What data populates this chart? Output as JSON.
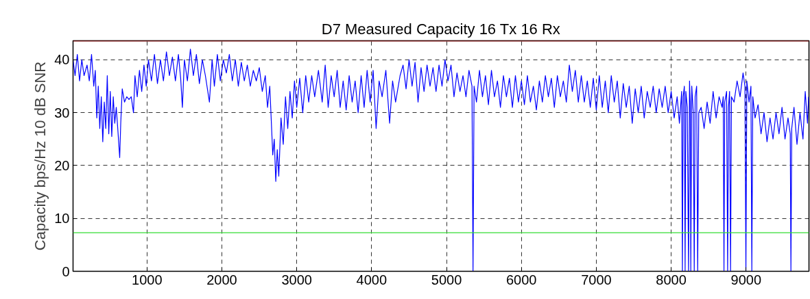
{
  "chart_data": {
    "type": "line",
    "title": "D7 Measured Capacity 16 Tx 16 Rx",
    "ylabel": "Capacity bps/Hz 10 dB SNR",
    "xlim": [
      13,
      9840
    ],
    "ylim": [
      0,
      43.6
    ],
    "xticks": [
      1000,
      2000,
      3000,
      4000,
      5000,
      6000,
      7000,
      8000,
      9000
    ],
    "yticks": [
      0,
      10,
      20,
      30,
      40
    ],
    "grid": true,
    "line_style": "solid",
    "ref_lines": [
      {
        "axis": "y",
        "value": 43.6,
        "color": "#a01c1c"
      },
      {
        "axis": "y",
        "value": 7.3,
        "color": "#33dd33"
      }
    ],
    "series": [
      {
        "color": "#0000ff",
        "x": [
          13,
          40,
          70,
          100,
          130,
          160,
          200,
          230,
          260,
          290,
          310,
          330,
          350,
          370,
          390,
          410,
          430,
          450,
          470,
          490,
          510,
          530,
          550,
          570,
          590,
          610,
          636,
          650,
          670,
          700,
          730,
          760,
          790,
          820,
          840,
          870,
          900,
          930,
          960,
          990,
          1020,
          1060,
          1100,
          1140,
          1180,
          1220,
          1260,
          1300,
          1340,
          1380,
          1420,
          1450,
          1473,
          1500,
          1540,
          1580,
          1620,
          1660,
          1700,
          1740,
          1780,
          1834,
          1870,
          1900,
          1940,
          1980,
          2020,
          2060,
          2100,
          2140,
          2180,
          2220,
          2260,
          2300,
          2340,
          2380,
          2420,
          2460,
          2500,
          2540,
          2580,
          2610,
          2640,
          2680,
          2700,
          2720,
          2740,
          2760,
          2790,
          2820,
          2850,
          2880,
          2910,
          2940,
          2970,
          3000,
          3040,
          3080,
          3120,
          3160,
          3200,
          3240,
          3290,
          3340,
          3380,
          3420,
          3460,
          3500,
          3540,
          3580,
          3620,
          3660,
          3700,
          3740,
          3780,
          3820,
          3860,
          3900,
          3940,
          3980,
          4020,
          4060,
          4100,
          4140,
          4190,
          4240,
          4280,
          4320,
          4380,
          4420,
          4460,
          4500,
          4540,
          4580,
          4620,
          4660,
          4700,
          4740,
          4780,
          4820,
          4860,
          4900,
          4940,
          4980,
          5020,
          5060,
          5100,
          5140,
          5180,
          5220,
          5260,
          5300,
          5340,
          5354,
          5368,
          5400,
          5440,
          5480,
          5520,
          5560,
          5600,
          5640,
          5680,
          5720,
          5760,
          5800,
          5840,
          5880,
          5920,
          5960,
          6000,
          6040,
          6080,
          6120,
          6160,
          6200,
          6240,
          6280,
          6320,
          6360,
          6400,
          6440,
          6480,
          6520,
          6560,
          6600,
          6640,
          6680,
          6720,
          6760,
          6800,
          6840,
          6880,
          6920,
          6960,
          7000,
          7040,
          7080,
          7120,
          7160,
          7200,
          7240,
          7280,
          7320,
          7360,
          7400,
          7440,
          7480,
          7520,
          7560,
          7600,
          7640,
          7680,
          7720,
          7760,
          7800,
          7840,
          7880,
          7920,
          7960,
          8000,
          8040,
          8080,
          8110,
          8140,
          8150,
          8160,
          8176,
          8186,
          8196,
          8215,
          8232,
          8245,
          8255,
          8262,
          8275,
          8295,
          8308,
          8320,
          8340,
          8354,
          8368,
          8400,
          8440,
          8480,
          8520,
          8560,
          8600,
          8640,
          8680,
          8695,
          8705,
          8715,
          8740,
          8754,
          8765,
          8780,
          8793,
          8805,
          8840,
          8880,
          8920,
          8960,
          8985,
          8998,
          9010,
          9040,
          9065,
          9077,
          9090,
          9120,
          9160,
          9200,
          9240,
          9280,
          9320,
          9360,
          9400,
          9440,
          9480,
          9520,
          9560,
          9590,
          9599,
          9610,
          9640,
          9680,
          9720,
          9760,
          9790,
          9820,
          9835
        ],
        "values": [
          40,
          37,
          41,
          36,
          40,
          37,
          39,
          36,
          41,
          35,
          38,
          29,
          35,
          27,
          33,
          24.5,
          32,
          27,
          37,
          26,
          34,
          25.5,
          33,
          28,
          31,
          27,
          21.5,
          28,
          34.5,
          32,
          33,
          32.5,
          33,
          30,
          37,
          33,
          38,
          34,
          39,
          35,
          40,
          36,
          41,
          35.5,
          40,
          36,
          41.5,
          37,
          40.5,
          36,
          41,
          36.5,
          31,
          40,
          36,
          42,
          37,
          41,
          35.5,
          40,
          37,
          32,
          40,
          35,
          41,
          36,
          40,
          37.5,
          41,
          36,
          40,
          35,
          39.5,
          36,
          39,
          35,
          38,
          36,
          38.5,
          34,
          37,
          31,
          35,
          22,
          25,
          17,
          23,
          18,
          29,
          24,
          33,
          27,
          34,
          29,
          36,
          31,
          36.5,
          30,
          37,
          32,
          37,
          33,
          38,
          32,
          39,
          31,
          37,
          33,
          38,
          31,
          36,
          30.5,
          37,
          32,
          36,
          30,
          37,
          31,
          38,
          32,
          38,
          27,
          36,
          33,
          38,
          28,
          36,
          32,
          37,
          39,
          34.5,
          40,
          35,
          39.5,
          32,
          38.5,
          34,
          39,
          35,
          38.5,
          34,
          39,
          35,
          40,
          36,
          39,
          33,
          37.5,
          34,
          37,
          33,
          38,
          35,
          0,
          35,
          32,
          38,
          33,
          37,
          31.5,
          38,
          33,
          36,
          31,
          37,
          33,
          36.5,
          31,
          37,
          32,
          36,
          31.5,
          37,
          32,
          35,
          30.5,
          36,
          32,
          37,
          33,
          36.5,
          31,
          37,
          33,
          36,
          32,
          39,
          34,
          38,
          32,
          37,
          32,
          36,
          31,
          36.5,
          30.5,
          37,
          31,
          36,
          30,
          37,
          32,
          36,
          29,
          35.5,
          31,
          35,
          28,
          34.5,
          30,
          35,
          29,
          34,
          31,
          35,
          30,
          34.5,
          31,
          35,
          30,
          34,
          29,
          33,
          28,
          34,
          0,
          33,
          35,
          0,
          34,
          31,
          0,
          36,
          32,
          0,
          35,
          30,
          0,
          33,
          35,
          0,
          30,
          31,
          27,
          32,
          28,
          34,
          29,
          33,
          31,
          33,
          0,
          32,
          34,
          0,
          31,
          34,
          0,
          33,
          32,
          36,
          33,
          37.5,
          35,
          0,
          36,
          32,
          35,
          0,
          33,
          29,
          31.5,
          26,
          30,
          24.5,
          29,
          25,
          30,
          26,
          31,
          25,
          29,
          26,
          0,
          27,
          31,
          24,
          30,
          25,
          34,
          28,
          33
        ]
      }
    ]
  }
}
